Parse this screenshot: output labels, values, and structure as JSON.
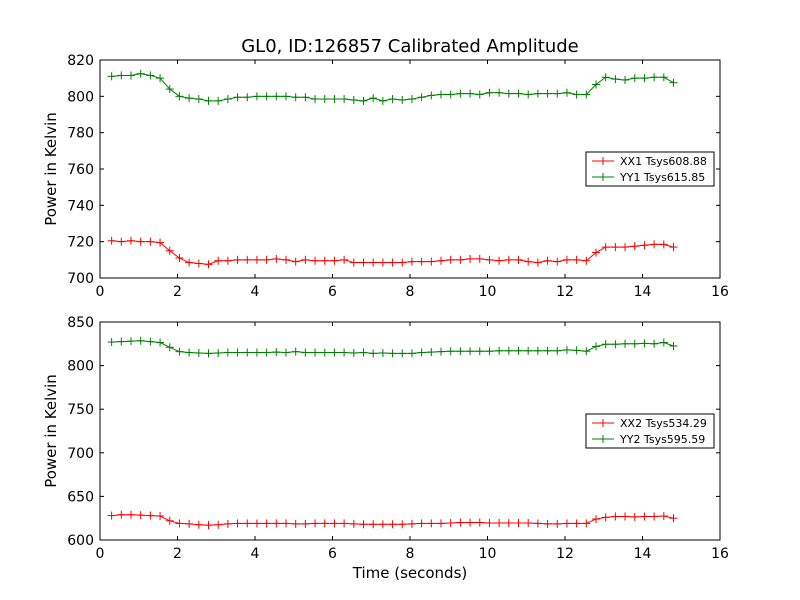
{
  "chart_data": [
    {
      "type": "line",
      "title": "GL0, ID:126857 Calibrated Amplitude",
      "xlabel": "",
      "ylabel": "Power in Kelvin",
      "xlim": [
        0,
        16
      ],
      "ylim": [
        700,
        820
      ],
      "xticks": [
        0,
        2,
        4,
        6,
        8,
        10,
        12,
        14,
        16
      ],
      "yticks": [
        700,
        720,
        740,
        760,
        780,
        800,
        820
      ],
      "grid": false,
      "legend_position": "right",
      "marker": "+",
      "x": [
        0.3,
        0.55,
        0.8,
        1.05,
        1.3,
        1.55,
        1.8,
        2.05,
        2.3,
        2.55,
        2.8,
        3.05,
        3.3,
        3.55,
        3.8,
        4.05,
        4.3,
        4.55,
        4.8,
        5.05,
        5.3,
        5.55,
        5.8,
        6.05,
        6.3,
        6.55,
        6.8,
        7.05,
        7.3,
        7.55,
        7.8,
        8.05,
        8.3,
        8.55,
        8.8,
        9.05,
        9.3,
        9.55,
        9.8,
        10.05,
        10.3,
        10.55,
        10.8,
        11.05,
        11.3,
        11.55,
        11.8,
        12.05,
        12.3,
        12.55,
        12.8,
        13.05,
        13.3,
        13.55,
        13.8,
        14.05,
        14.3,
        14.55,
        14.8
      ],
      "series": [
        {
          "name": "XX1 Tsys608.88",
          "color": "#ff0000",
          "values": [
            720.5,
            720,
            720.5,
            720,
            720,
            719.5,
            715,
            711,
            708.5,
            708,
            707.5,
            709.5,
            709.5,
            710,
            710,
            710,
            710,
            710.5,
            710,
            709,
            710,
            709.5,
            709.5,
            709.5,
            710,
            708.5,
            708.5,
            708.5,
            708.5,
            708.5,
            708.5,
            709,
            709,
            709,
            709.5,
            710,
            710,
            710.5,
            710.5,
            710,
            709.5,
            710,
            710,
            709,
            708.5,
            709.5,
            709,
            710,
            710,
            709.5,
            714,
            717,
            717,
            717,
            717.5,
            718,
            718.5,
            718.5,
            717
          ]
        },
        {
          "name": "YY1 Tsys615.85",
          "color": "#008000",
          "values": [
            811,
            811.5,
            811.5,
            812.5,
            811.5,
            810,
            804,
            800,
            799,
            798.5,
            797.5,
            797.5,
            798.5,
            799.5,
            799.5,
            800,
            800,
            800,
            800,
            799.5,
            799.5,
            798.5,
            798.5,
            798.5,
            798.5,
            798,
            797.5,
            799,
            797.5,
            798.5,
            798,
            798.5,
            799.5,
            800.5,
            801,
            801,
            801.5,
            801.5,
            801,
            802,
            802,
            801.5,
            801.5,
            801,
            801.5,
            801.5,
            801.5,
            802,
            801,
            801,
            806.5,
            810.5,
            809.5,
            809,
            810,
            810,
            810.5,
            810.5,
            807.5
          ]
        }
      ]
    },
    {
      "type": "line",
      "title": "",
      "xlabel": "Time (seconds)",
      "ylabel": "Power in Kelvin",
      "xlim": [
        0,
        16
      ],
      "ylim": [
        600,
        850
      ],
      "xticks": [
        0,
        2,
        4,
        6,
        8,
        10,
        12,
        14,
        16
      ],
      "yticks": [
        600,
        650,
        700,
        750,
        800,
        850
      ],
      "grid": false,
      "legend_position": "right",
      "marker": "+",
      "x": [
        0.3,
        0.55,
        0.8,
        1.05,
        1.3,
        1.55,
        1.8,
        2.05,
        2.3,
        2.55,
        2.8,
        3.05,
        3.3,
        3.55,
        3.8,
        4.05,
        4.3,
        4.55,
        4.8,
        5.05,
        5.3,
        5.55,
        5.8,
        6.05,
        6.3,
        6.55,
        6.8,
        7.05,
        7.3,
        7.55,
        7.8,
        8.05,
        8.3,
        8.55,
        8.8,
        9.05,
        9.3,
        9.55,
        9.8,
        10.05,
        10.3,
        10.55,
        10.8,
        11.05,
        11.3,
        11.55,
        11.8,
        12.05,
        12.3,
        12.55,
        12.8,
        13.05,
        13.3,
        13.55,
        13.8,
        14.05,
        14.3,
        14.55,
        14.8
      ],
      "series": [
        {
          "name": "XX2 Tsys534.29",
          "color": "#ff0000",
          "values": [
            628,
            629,
            629,
            628.5,
            628,
            627.5,
            622,
            619,
            618.5,
            617.5,
            617,
            617.5,
            618.5,
            619,
            619,
            619,
            619,
            619,
            619,
            618.5,
            618.5,
            619,
            619,
            619,
            619,
            618.5,
            618,
            618,
            618,
            618,
            618,
            618.5,
            619,
            619,
            619,
            619.5,
            620,
            620,
            620,
            619.5,
            619.5,
            619.5,
            619.5,
            619.5,
            619,
            618.5,
            618.5,
            619,
            619,
            619,
            624,
            626,
            627,
            627,
            626.5,
            627,
            627,
            627.5,
            625
          ]
        },
        {
          "name": "YY2 Tsys595.59",
          "color": "#008000",
          "values": [
            827,
            827.5,
            828,
            828.5,
            827.5,
            826.5,
            821,
            816,
            815,
            814.5,
            814,
            814.5,
            815,
            815,
            815,
            815,
            815,
            815.5,
            815,
            816,
            815,
            815,
            815,
            815,
            815,
            814.5,
            815,
            814,
            814.5,
            814,
            814,
            814,
            815,
            815.5,
            816,
            816.5,
            816.5,
            816.5,
            816.5,
            816.5,
            817,
            817,
            817,
            817,
            817,
            817,
            817,
            818,
            817.5,
            816.5,
            822,
            824.5,
            824.5,
            825,
            825,
            825.5,
            825,
            826.5,
            822.5
          ]
        }
      ]
    }
  ]
}
